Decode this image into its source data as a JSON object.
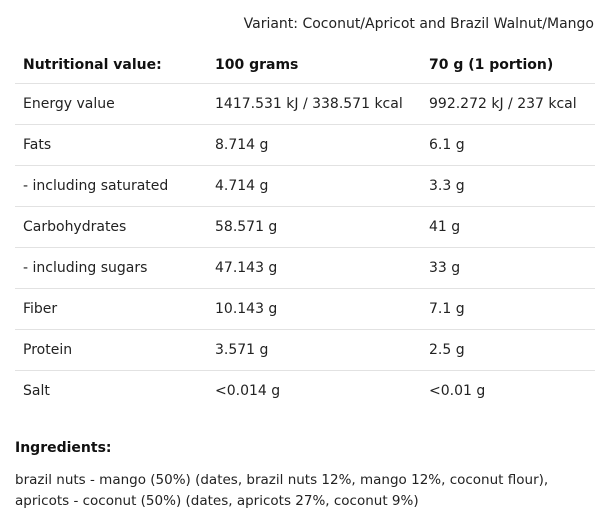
{
  "variant": "Variant: Coconut/Apricot and Brazil Walnut/Mango",
  "table": {
    "headers": [
      "Nutritional value:",
      "100 grams",
      "70 g (1 portion)"
    ],
    "rows": [
      {
        "label": "Energy value",
        "per100": "1417.531 kJ / 338.571 kcal",
        "portion": "992.272 kJ / 237 kcal",
        "sub": false
      },
      {
        "label": "Fats",
        "per100": "8.714 g",
        "portion": "6.1 g",
        "sub": false
      },
      {
        "label": "- including saturated",
        "per100": "4.714 g",
        "portion": "3.3 g",
        "sub": true
      },
      {
        "label": "Carbohydrates",
        "per100": "58.571 g",
        "portion": "41 g",
        "sub": false
      },
      {
        "label": "- including sugars",
        "per100": "47.143 g",
        "portion": "33 g",
        "sub": true
      },
      {
        "label": "Fiber",
        "per100": "10.143 g",
        "portion": "7.1 g",
        "sub": false
      },
      {
        "label": "Protein",
        "per100": "3.571 g",
        "portion": "2.5 g",
        "sub": false
      },
      {
        "label": "Salt",
        "per100": "<0.014 g",
        "portion": "<0.01 g",
        "sub": false
      }
    ]
  },
  "ingredients": {
    "title": "Ingredients:",
    "text": "brazil nuts - mango (50%) (dates, brazil nuts 12%, mango 12%, coconut flour), apricots - coconut (50%) (dates, apricots 27%, coconut 9%)"
  }
}
